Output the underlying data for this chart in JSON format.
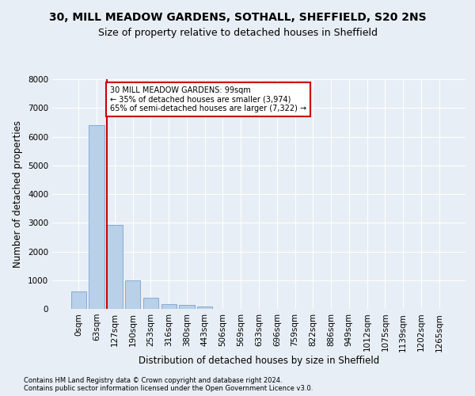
{
  "title_line1": "30, MILL MEADOW GARDENS, SOTHALL, SHEFFIELD, S20 2NS",
  "title_line2": "Size of property relative to detached houses in Sheffield",
  "xlabel": "Distribution of detached houses by size in Sheffield",
  "ylabel": "Number of detached properties",
  "footnote": "Contains HM Land Registry data © Crown copyright and database right 2024.\nContains public sector information licensed under the Open Government Licence v3.0.",
  "bar_labels": [
    "0sqm",
    "63sqm",
    "127sqm",
    "190sqm",
    "253sqm",
    "316sqm",
    "380sqm",
    "443sqm",
    "506sqm",
    "569sqm",
    "633sqm",
    "696sqm",
    "759sqm",
    "822sqm",
    "886sqm",
    "949sqm",
    "1012sqm",
    "1075sqm",
    "1139sqm",
    "1202sqm",
    "1265sqm"
  ],
  "bar_values": [
    600,
    6400,
    2920,
    1000,
    380,
    175,
    125,
    90,
    0,
    0,
    0,
    0,
    0,
    0,
    0,
    0,
    0,
    0,
    0,
    0,
    0
  ],
  "bar_color": "#b8d0e8",
  "bar_edge_color": "#6699cc",
  "property_line_x": 1.56,
  "annotation_text": "30 MILL MEADOW GARDENS: 99sqm\n← 35% of detached houses are smaller (3,974)\n65% of semi-detached houses are larger (7,322) →",
  "annotation_box_color": "#ffffff",
  "annotation_box_edge": "#cc0000",
  "vline_color": "#cc0000",
  "ylim": [
    0,
    8000
  ],
  "background_color": "#e8eef5",
  "plot_bg_color": "#e8eef5",
  "grid_color": "#ffffff",
  "title_fontsize": 10,
  "subtitle_fontsize": 9,
  "tick_fontsize": 7.5,
  "ylabel_fontsize": 8.5,
  "xlabel_fontsize": 8.5,
  "footnote_fontsize": 6.0
}
